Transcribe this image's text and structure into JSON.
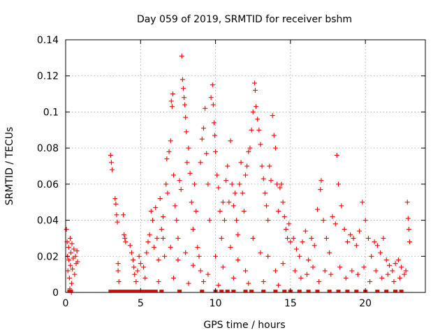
{
  "chart_data": {
    "type": "scatter",
    "title": "Day 059 of 2019, SRMTID for receiver bshm",
    "xlabel": "GPS time / hours",
    "ylabel": "SRMTID / TECUs",
    "xlim": [
      0,
      24
    ],
    "ylim": [
      0,
      0.14
    ],
    "xticks": [
      0,
      5,
      10,
      15,
      20
    ],
    "xtick_labels": [
      "0",
      "5",
      "10",
      "15",
      "20"
    ],
    "yticks": [
      0,
      0.02,
      0.04,
      0.06,
      0.08,
      0.1,
      0.12,
      0.14
    ],
    "ytick_labels": [
      "0",
      "0.02",
      "0.04",
      "0.06",
      "0.08",
      "0.1",
      "0.12",
      "0.14"
    ],
    "grid": true,
    "legend": "none",
    "marker": "+",
    "color": "#ff0000",
    "series": [
      {
        "name": "SRMTID",
        "points": [
          [
            0.05,
            0.035
          ],
          [
            0.1,
            0.028
          ],
          [
            0.12,
            0.02
          ],
          [
            0.15,
            0.012
          ],
          [
            0.2,
            0.025
          ],
          [
            0.22,
            0.018
          ],
          [
            0.25,
            0.008
          ],
          [
            0.3,
            0.03
          ],
          [
            0.32,
            0.015
          ],
          [
            0.35,
            0.022
          ],
          [
            0.4,
            0.005
          ],
          [
            0.42,
            0.027
          ],
          [
            0.45,
            0.013
          ],
          [
            0.5,
            0.019
          ],
          [
            0.55,
            0.024
          ],
          [
            0.6,
            0.01
          ],
          [
            0.65,
            0.02
          ],
          [
            0.7,
            0.016
          ],
          [
            0.75,
            0.023
          ],
          [
            0.8,
            0.017
          ],
          [
            0.28,
            0.002
          ],
          [
            0.38,
            0.0
          ],
          [
            3.0,
            0.076
          ],
          [
            3.05,
            0.072
          ],
          [
            3.1,
            0.068
          ],
          [
            3.3,
            0.052
          ],
          [
            3.35,
            0.049
          ],
          [
            3.4,
            0.043
          ],
          [
            3.45,
            0.039
          ],
          [
            3.5,
            0.016
          ],
          [
            3.5,
            0.012
          ],
          [
            3.55,
            0.006
          ],
          [
            3.85,
            0.043
          ],
          [
            3.9,
            0.032
          ],
          [
            3.95,
            0.03
          ],
          [
            4.0,
            0.028
          ],
          [
            4.3,
            0.026
          ],
          [
            4.4,
            0.022
          ],
          [
            4.5,
            0.018
          ],
          [
            4.55,
            0.014
          ],
          [
            4.6,
            0.01
          ],
          [
            4.7,
            0.006
          ],
          [
            4.8,
            0.012
          ],
          [
            4.9,
            0.02
          ],
          [
            5.0,
            0.016
          ],
          [
            5.2,
            0.014
          ],
          [
            5.3,
            0.008
          ],
          [
            5.4,
            0.022
          ],
          [
            5.5,
            0.028
          ],
          [
            5.6,
            0.032
          ],
          [
            5.7,
            0.045
          ],
          [
            5.8,
            0.04
          ],
          [
            5.9,
            0.025
          ],
          [
            6.0,
            0.047
          ],
          [
            6.1,
            0.03
          ],
          [
            6.2,
            0.018
          ],
          [
            6.3,
            0.052
          ],
          [
            6.4,
            0.035
          ],
          [
            6.5,
            0.042
          ],
          [
            6.6,
            0.02
          ],
          [
            6.7,
            0.06
          ],
          [
            6.75,
            0.074
          ],
          [
            6.8,
            0.055
          ],
          [
            6.9,
            0.078
          ],
          [
            7.0,
            0.084
          ],
          [
            7.05,
            0.106
          ],
          [
            7.1,
            0.103
          ],
          [
            7.15,
            0.11
          ],
          [
            7.2,
            0.065
          ],
          [
            7.3,
            0.048
          ],
          [
            7.4,
            0.04
          ],
          [
            7.5,
            0.03
          ],
          [
            7.6,
            0.062
          ],
          [
            7.7,
            0.057
          ],
          [
            7.75,
            0.131
          ],
          [
            7.8,
            0.118
          ],
          [
            7.85,
            0.113
          ],
          [
            7.9,
            0.108
          ],
          [
            7.95,
            0.104
          ],
          [
            8.0,
            0.097
          ],
          [
            8.05,
            0.089
          ],
          [
            8.1,
            0.072
          ],
          [
            8.2,
            0.08
          ],
          [
            8.3,
            0.066
          ],
          [
            8.4,
            0.05
          ],
          [
            8.5,
            0.035
          ],
          [
            8.6,
            0.06
          ],
          [
            8.7,
            0.045
          ],
          [
            8.8,
            0.025
          ],
          [
            8.9,
            0.02
          ],
          [
            9.0,
            0.072
          ],
          [
            9.1,
            0.085
          ],
          [
            9.2,
            0.091
          ],
          [
            9.3,
            0.102
          ],
          [
            9.4,
            0.077
          ],
          [
            9.5,
            0.06
          ],
          [
            9.6,
            0.04
          ],
          [
            9.7,
            0.108
          ],
          [
            9.8,
            0.115
          ],
          [
            9.85,
            0.104
          ],
          [
            9.9,
            0.094
          ],
          [
            9.95,
            0.087
          ],
          [
            10.0,
            0.078
          ],
          [
            10.1,
            0.065
          ],
          [
            10.2,
            0.058
          ],
          [
            10.3,
            0.045
          ],
          [
            10.4,
            0.03
          ],
          [
            10.5,
            0.05
          ],
          [
            10.6,
            0.04
          ],
          [
            10.7,
            0.062
          ],
          [
            10.8,
            0.07
          ],
          [
            10.9,
            0.05
          ],
          [
            11.0,
            0.084
          ],
          [
            11.1,
            0.06
          ],
          [
            11.2,
            0.048
          ],
          [
            11.3,
            0.055
          ],
          [
            11.4,
            0.04
          ],
          [
            11.5,
            0.032
          ],
          [
            11.6,
            0.06
          ],
          [
            11.7,
            0.072
          ],
          [
            11.8,
            0.055
          ],
          [
            11.9,
            0.045
          ],
          [
            12.0,
            0.065
          ],
          [
            12.1,
            0.07
          ],
          [
            12.2,
            0.078
          ],
          [
            12.3,
            0.08
          ],
          [
            12.4,
            0.09
          ],
          [
            12.5,
            0.1
          ],
          [
            12.6,
            0.116
          ],
          [
            12.65,
            0.112
          ],
          [
            12.7,
            0.103
          ],
          [
            12.8,
            0.096
          ],
          [
            12.9,
            0.09
          ],
          [
            13.0,
            0.082
          ],
          [
            13.1,
            0.07
          ],
          [
            13.2,
            0.063
          ],
          [
            13.3,
            0.055
          ],
          [
            13.4,
            0.048
          ],
          [
            13.5,
            0.04
          ],
          [
            13.6,
            0.07
          ],
          [
            13.7,
            0.062
          ],
          [
            13.8,
            0.098
          ],
          [
            13.9,
            0.087
          ],
          [
            14.0,
            0.08
          ],
          [
            14.1,
            0.06
          ],
          [
            14.2,
            0.045
          ],
          [
            14.3,
            0.058
          ],
          [
            14.4,
            0.06
          ],
          [
            14.5,
            0.05
          ],
          [
            14.6,
            0.042
          ],
          [
            14.7,
            0.035
          ],
          [
            14.8,
            0.03
          ],
          [
            14.9,
            0.038
          ],
          [
            15.0,
            0.028
          ],
          [
            6.5,
            0.03
          ],
          [
            7.0,
            0.025
          ],
          [
            7.5,
            0.018
          ],
          [
            8.0,
            0.022
          ],
          [
            8.5,
            0.015
          ],
          [
            9.0,
            0.012
          ],
          [
            9.5,
            0.01
          ],
          [
            10.0,
            0.02
          ],
          [
            10.5,
            0.014
          ],
          [
            11.0,
            0.025
          ],
          [
            11.5,
            0.018
          ],
          [
            12.0,
            0.012
          ],
          [
            12.5,
            0.03
          ],
          [
            13.0,
            0.022
          ],
          [
            13.5,
            0.02
          ],
          [
            14.0,
            0.012
          ],
          [
            14.5,
            0.016
          ],
          [
            6.2,
            0.006
          ],
          [
            7.2,
            0.008
          ],
          [
            8.2,
            0.005
          ],
          [
            9.2,
            0.006
          ],
          [
            10.2,
            0.004
          ],
          [
            11.2,
            0.008
          ],
          [
            12.2,
            0.005
          ],
          [
            13.2,
            0.006
          ],
          [
            14.2,
            0.004
          ],
          [
            15.2,
            0.03
          ],
          [
            15.4,
            0.024
          ],
          [
            15.6,
            0.02
          ],
          [
            15.8,
            0.028
          ],
          [
            16.0,
            0.034
          ],
          [
            16.2,
            0.018
          ],
          [
            16.4,
            0.03
          ],
          [
            16.6,
            0.026
          ],
          [
            16.8,
            0.046
          ],
          [
            17.0,
            0.057
          ],
          [
            17.05,
            0.062
          ],
          [
            17.2,
            0.04
          ],
          [
            17.4,
            0.03
          ],
          [
            17.6,
            0.022
          ],
          [
            17.8,
            0.042
          ],
          [
            18.0,
            0.038
          ],
          [
            18.1,
            0.076
          ],
          [
            18.2,
            0.06
          ],
          [
            18.4,
            0.048
          ],
          [
            18.6,
            0.035
          ],
          [
            18.8,
            0.028
          ],
          [
            19.0,
            0.032
          ],
          [
            19.2,
            0.03
          ],
          [
            19.4,
            0.026
          ],
          [
            19.6,
            0.034
          ],
          [
            19.8,
            0.05
          ],
          [
            20.0,
            0.04
          ],
          [
            20.2,
            0.03
          ],
          [
            20.4,
            0.02
          ],
          [
            20.6,
            0.028
          ],
          [
            20.8,
            0.026
          ],
          [
            21.0,
            0.022
          ],
          [
            21.2,
            0.03
          ],
          [
            21.4,
            0.018
          ],
          [
            21.6,
            0.015
          ],
          [
            21.8,
            0.012
          ],
          [
            22.0,
            0.016
          ],
          [
            22.2,
            0.018
          ],
          [
            22.4,
            0.014
          ],
          [
            22.6,
            0.01
          ],
          [
            22.8,
            0.05
          ],
          [
            22.85,
            0.041
          ],
          [
            22.9,
            0.035
          ],
          [
            22.95,
            0.028
          ],
          [
            15.3,
            0.012
          ],
          [
            15.7,
            0.008
          ],
          [
            16.1,
            0.01
          ],
          [
            16.5,
            0.014
          ],
          [
            16.9,
            0.006
          ],
          [
            17.3,
            0.012
          ],
          [
            17.7,
            0.01
          ],
          [
            18.3,
            0.014
          ],
          [
            18.7,
            0.008
          ],
          [
            19.1,
            0.012
          ],
          [
            19.5,
            0.01
          ],
          [
            19.9,
            0.014
          ],
          [
            20.3,
            0.006
          ],
          [
            20.7,
            0.012
          ],
          [
            21.1,
            0.008
          ],
          [
            21.5,
            0.01
          ],
          [
            21.9,
            0.006
          ],
          [
            22.3,
            0.008
          ],
          [
            22.7,
            0.012
          ]
        ]
      }
    ],
    "zero_points_x": [
      0.25,
      0.35,
      3.0,
      3.15,
      3.3,
      3.45,
      3.6,
      3.75,
      3.9,
      4.05,
      4.2,
      4.35,
      4.5,
      4.65,
      4.8,
      4.95,
      5.1,
      5.25,
      5.4,
      5.55,
      5.7,
      5.85,
      6.0,
      6.4,
      7.6,
      9.1,
      10.0,
      10.4,
      10.8,
      11.2,
      12.0,
      12.4,
      13.2,
      14.0,
      14.6,
      15.0,
      15.6,
      16.2,
      16.8,
      17.6,
      18.2,
      18.8,
      19.4,
      20.0,
      20.8,
      21.4,
      22.0,
      22.4
    ]
  }
}
